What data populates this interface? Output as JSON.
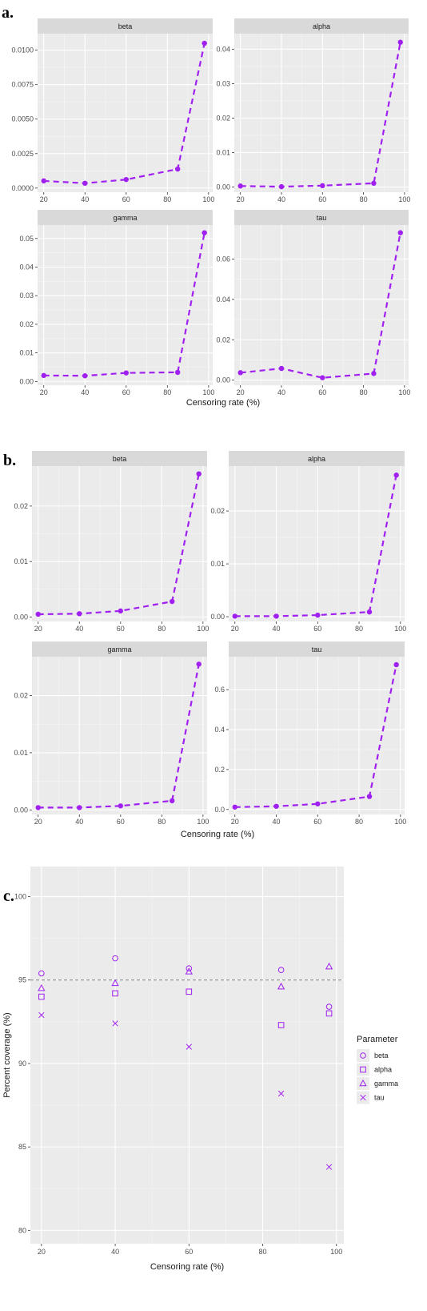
{
  "section_labels": [
    "a.",
    "b.",
    "c."
  ],
  "colors": {
    "series": "#a020f0",
    "panel": "#ebebeb",
    "strip": "#d9d9d9",
    "refline": "#7f7f7f"
  },
  "chart_data": [
    {
      "id": "a",
      "type": "line",
      "xlabel": "Censoring rate (%)",
      "x": [
        20,
        40,
        60,
        85,
        98
      ],
      "xticks": [
        20,
        40,
        60,
        80,
        100
      ],
      "panels": [
        {
          "title": "beta",
          "values": [
            0.00052,
            0.00035,
            0.00062,
            0.00138,
            0.0105
          ],
          "ylim": [
            -0.0003,
            0.0112
          ],
          "yticks": [
            0.0,
            0.0025,
            0.005,
            0.0075,
            0.01
          ],
          "yticklabels": [
            "0.0000",
            "0.0025",
            "0.0050",
            "0.0075",
            "0.0100"
          ]
        },
        {
          "title": "alpha",
          "values": [
            0.0003,
            0.0001,
            0.0004,
            0.0011,
            0.042
          ],
          "ylim": [
            -0.0015,
            0.0445
          ],
          "yticks": [
            0.0,
            0.01,
            0.02,
            0.03,
            0.04
          ],
          "yticklabels": [
            "0.00",
            "0.01",
            "0.02",
            "0.03",
            "0.04"
          ]
        },
        {
          "title": "gamma",
          "values": [
            0.0021,
            0.002,
            0.003,
            0.0032,
            0.052
          ],
          "ylim": [
            -0.0013,
            0.0547
          ],
          "yticks": [
            0.0,
            0.01,
            0.02,
            0.03,
            0.04,
            0.05
          ],
          "yticklabels": [
            "0.00",
            "0.01",
            "0.02",
            "0.03",
            "0.04",
            "0.05"
          ]
        },
        {
          "title": "tau",
          "values": [
            0.0037,
            0.0058,
            0.0012,
            0.0033,
            0.073
          ],
          "ylim": [
            -0.0025,
            0.0768
          ],
          "yticks": [
            0.0,
            0.02,
            0.04,
            0.06
          ],
          "yticklabels": [
            "0.00",
            "0.02",
            "0.04",
            "0.06"
          ]
        }
      ]
    },
    {
      "id": "b",
      "type": "line",
      "xlabel": "Censoring rate (%)",
      "x": [
        20,
        40,
        60,
        85,
        98
      ],
      "xticks": [
        20,
        40,
        60,
        80,
        100
      ],
      "panels": [
        {
          "title": "beta",
          "values": [
            0.0005,
            0.0006,
            0.0011,
            0.0028,
            0.0258
          ],
          "ylim": [
            -0.0008,
            0.0272
          ],
          "yticks": [
            0.0,
            0.01,
            0.02
          ],
          "yticklabels": [
            "0.00",
            "0.01",
            "0.02"
          ]
        },
        {
          "title": "alpha",
          "values": [
            0.0001,
            0.0001,
            0.0003,
            0.0009,
            0.0268
          ],
          "ylim": [
            -0.0009,
            0.0285
          ],
          "yticks": [
            0.0,
            0.01,
            0.02
          ],
          "yticklabels": [
            "0.00",
            "0.01",
            "0.02"
          ]
        },
        {
          "title": "gamma",
          "values": [
            0.0004,
            0.0004,
            0.0007,
            0.0016,
            0.0255
          ],
          "ylim": [
            -0.0008,
            0.0268
          ],
          "yticks": [
            0.0,
            0.01,
            0.02
          ],
          "yticklabels": [
            "0.00",
            "0.01",
            "0.02"
          ]
        },
        {
          "title": "tau",
          "values": [
            0.012,
            0.016,
            0.028,
            0.065,
            0.725
          ],
          "ylim": [
            -0.025,
            0.765
          ],
          "yticks": [
            0.0,
            0.2,
            0.4,
            0.6
          ],
          "yticklabels": [
            "0.0",
            "0.2",
            "0.4",
            "0.6"
          ]
        }
      ]
    },
    {
      "id": "c",
      "type": "scatter",
      "xlabel": "Censoring rate (%)",
      "ylabel": "Percent coverage (%)",
      "xlim": [
        17,
        102
      ],
      "ylim": [
        79.2,
        101.8
      ],
      "xticks": [
        20,
        40,
        60,
        80,
        100
      ],
      "yticks": [
        80,
        85,
        90,
        95,
        100
      ],
      "reference_line": 95,
      "legend_title": "Parameter",
      "legend_position": "right",
      "series": [
        {
          "name": "beta",
          "shape": "circle",
          "x": [
            20,
            40,
            60,
            85,
            98
          ],
          "values": [
            95.4,
            96.3,
            95.7,
            95.6,
            93.4
          ]
        },
        {
          "name": "alpha",
          "shape": "square",
          "x": [
            20,
            40,
            60,
            85,
            98
          ],
          "values": [
            94.0,
            94.2,
            94.3,
            92.3,
            93.0
          ]
        },
        {
          "name": "gamma",
          "shape": "triangle",
          "x": [
            20,
            40,
            60,
            85,
            98
          ],
          "values": [
            94.5,
            94.8,
            95.5,
            94.6,
            95.8
          ]
        },
        {
          "name": "tau",
          "shape": "cross",
          "x": [
            20,
            40,
            60,
            85,
            98
          ],
          "values": [
            92.9,
            92.4,
            91.0,
            88.2,
            83.8
          ]
        }
      ]
    }
  ]
}
